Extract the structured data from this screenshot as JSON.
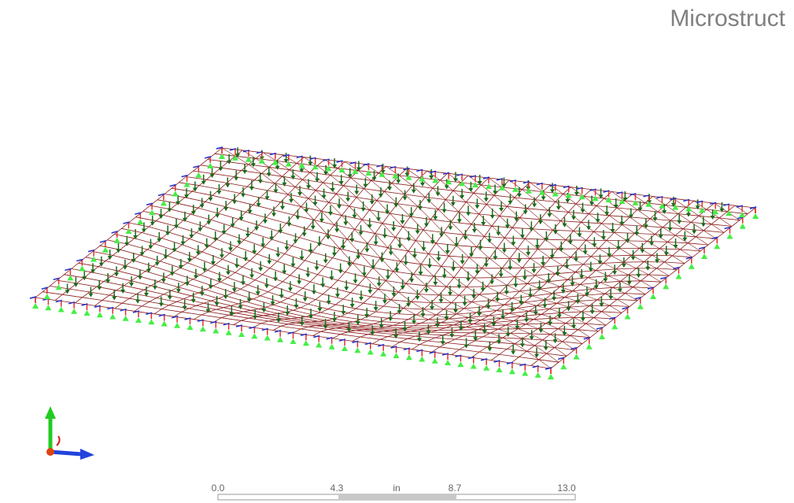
{
  "header": {
    "title": "Microstruct"
  },
  "scale_bar": {
    "labels": [
      "0.0",
      "4.3",
      "in",
      "8.7",
      "13.0"
    ]
  }
}
